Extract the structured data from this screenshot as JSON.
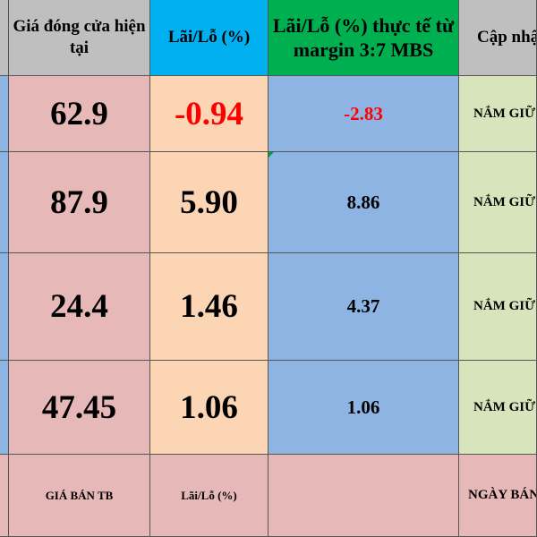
{
  "header": {
    "cells": [
      "Giá đóng cửa hiện tại",
      "Lãi/Lỗ (%)",
      "Lãi/Lỗ (%) thực tế từ margin 3:7 MBS",
      "Cập nhật"
    ]
  },
  "rows": [
    [
      "62.9",
      "-0.94",
      "-2.83",
      "NẮM GIỮ"
    ],
    [
      "87.9",
      "5.90",
      "8.86",
      "NẮM GIỮ"
    ],
    [
      "24.4",
      "1.46",
      "4.37",
      "NẮM GIỮ"
    ],
    [
      "47.45",
      "1.06",
      "1.06",
      "NẮM GIỮ"
    ]
  ],
  "footer": {
    "cells": [
      "GIÁ BÁN TB",
      "Lãi/Lỗ (%)",
      null,
      "NGÀY BÁN"
    ]
  }
}
